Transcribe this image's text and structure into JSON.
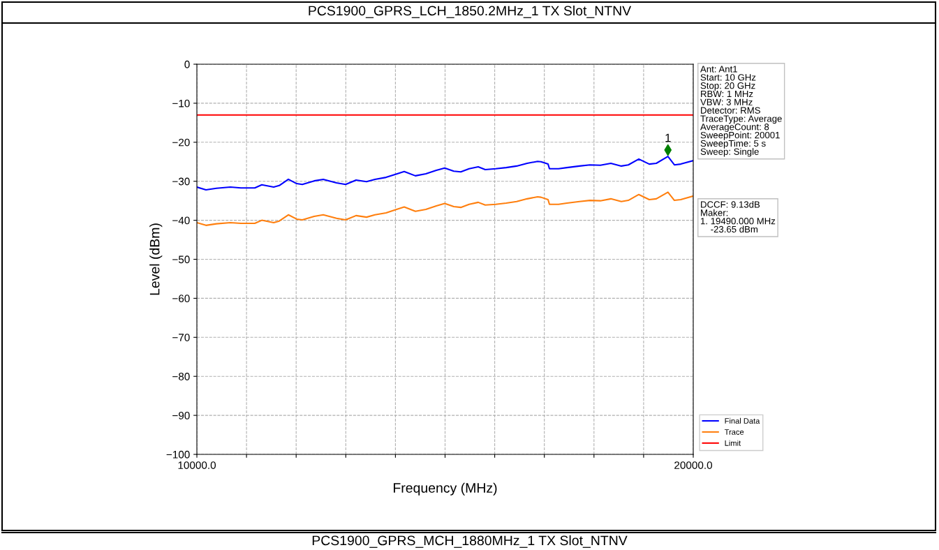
{
  "chart_data": {
    "type": "line",
    "title": "PCS1900_GPRS_LCH_1850.2MHz_1 TX Slot_NTNV",
    "xlabel": "Frequency (MHz)",
    "ylabel": "Level (dBm)",
    "xlim": [
      10000,
      20000
    ],
    "ylim": [
      -100,
      0
    ],
    "xticks": [
      {
        "value": 10000,
        "label": "10000.0"
      },
      {
        "value": 11000,
        "label": null
      },
      {
        "value": 12000,
        "label": null
      },
      {
        "value": 13000,
        "label": null
      },
      {
        "value": 14000,
        "label": null
      },
      {
        "value": 15000,
        "label": null
      },
      {
        "value": 16000,
        "label": null
      },
      {
        "value": 17000,
        "label": null
      },
      {
        "value": 18000,
        "label": null
      },
      {
        "value": 19000,
        "label": null
      },
      {
        "value": 20000,
        "label": "20000.0"
      }
    ],
    "yticks": [
      -100,
      -90,
      -80,
      -70,
      -60,
      -50,
      -40,
      -30,
      -20,
      -10,
      0
    ],
    "grid": true,
    "legend": "bottom right",
    "line_style": "solid",
    "marker": "none",
    "series": [
      {
        "name": "Final Data",
        "color": "#0000ff",
        "x": [
          10000,
          10183,
          10394,
          10675,
          10886,
          11167,
          11308,
          11547,
          11660,
          11843,
          12011,
          12124,
          12363,
          12546,
          12813,
          12996,
          13207,
          13418,
          13587,
          13812,
          13980,
          14177,
          14402,
          14613,
          14824,
          14993,
          15176,
          15317,
          15485,
          15668,
          15809,
          16020,
          16231,
          16442,
          16653,
          16864,
          16934,
          17075,
          17103,
          17286,
          17454,
          17708,
          17918,
          18129,
          18340,
          18551,
          18692,
          18903,
          19114,
          19255,
          19490,
          19620,
          19747,
          20000
        ],
        "values": [
          -31.5,
          -32.2,
          -31.8,
          -31.5,
          -31.7,
          -31.7,
          -30.9,
          -31.5,
          -31.1,
          -29.5,
          -30.6,
          -30.8,
          -29.9,
          -29.5,
          -30.4,
          -30.8,
          -29.7,
          -30.1,
          -29.5,
          -29.0,
          -28.3,
          -27.5,
          -28.6,
          -28.1,
          -27.2,
          -26.6,
          -27.4,
          -27.6,
          -26.8,
          -26.3,
          -27.0,
          -26.8,
          -26.5,
          -26.1,
          -25.4,
          -24.9,
          -25.0,
          -25.6,
          -26.8,
          -26.8,
          -26.5,
          -26.1,
          -25.8,
          -25.9,
          -25.4,
          -26.1,
          -25.8,
          -24.3,
          -25.6,
          -25.4,
          -23.65,
          -25.8,
          -25.6,
          -24.7
        ]
      },
      {
        "name": "Trace",
        "color": "#ff7f0e",
        "x": [
          10000,
          10183,
          10394,
          10675,
          10886,
          11167,
          11308,
          11547,
          11660,
          11843,
          12011,
          12124,
          12363,
          12546,
          12813,
          12996,
          13207,
          13418,
          13587,
          13812,
          13980,
          14177,
          14402,
          14613,
          14824,
          14993,
          15176,
          15317,
          15485,
          15668,
          15809,
          16020,
          16231,
          16442,
          16653,
          16864,
          16934,
          17075,
          17103,
          17286,
          17454,
          17708,
          17918,
          18129,
          18340,
          18551,
          18692,
          18903,
          19114,
          19255,
          19490,
          19620,
          19747,
          20000
        ],
        "values": [
          -40.6,
          -41.3,
          -40.9,
          -40.6,
          -40.8,
          -40.8,
          -40.0,
          -40.6,
          -40.2,
          -38.6,
          -39.7,
          -39.9,
          -39.0,
          -38.6,
          -39.5,
          -39.9,
          -38.8,
          -39.2,
          -38.6,
          -38.1,
          -37.4,
          -36.6,
          -37.7,
          -37.2,
          -36.3,
          -35.7,
          -36.5,
          -36.7,
          -35.9,
          -35.4,
          -36.1,
          -35.9,
          -35.6,
          -35.2,
          -34.5,
          -34.0,
          -34.1,
          -34.7,
          -35.9,
          -35.9,
          -35.6,
          -35.2,
          -34.9,
          -35.0,
          -34.5,
          -35.2,
          -34.9,
          -33.4,
          -34.7,
          -34.5,
          -32.8,
          -34.9,
          -34.7,
          -33.8
        ]
      },
      {
        "name": "Limit",
        "color": "#ff0000",
        "x": [
          10000,
          20000
        ],
        "values": [
          -13,
          -13
        ]
      },
      {
        "type": "scatter",
        "color": "#008000",
        "marker": "diamond",
        "x": [
          19490
        ],
        "values": [
          -22
        ]
      }
    ],
    "annotations": [
      {
        "text": "1",
        "x": 19490,
        "y": -22
      },
      "Ant: Ant1\nStart: 10 GHz\nStop: 20 GHz\nRBW: 1 MHz\nVBW: 3 MHz\nDetector: RMS\nTraceType: Average\nAverageCount: 8\nSweepPoint: 20001\nSweepTime: 5 s\nSweep: Single",
      "DCCF: 9.13dB\nMaker:\n1. 19490.000 MHz\n    -23.65 dBm",
      "PCS1900_GPRS_MCH_1880MHz_1 TX Slot_NTNV"
    ]
  }
}
